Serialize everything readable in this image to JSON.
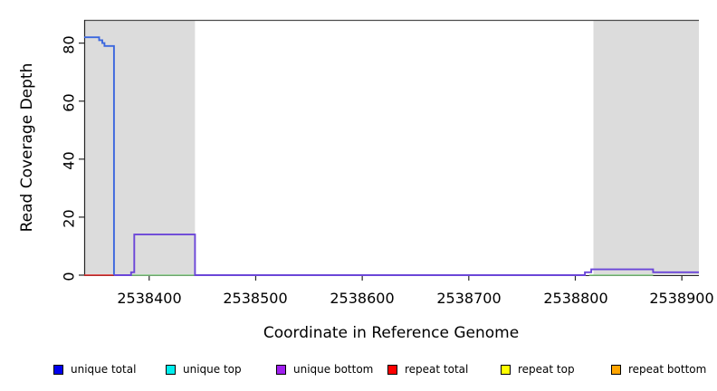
{
  "chart_data": {
    "type": "line",
    "subtype": "step-coverage",
    "xlabel": "Coordinate in Reference Genome",
    "ylabel": "Read Coverage Depth",
    "xlim": [
      2538339,
      2538916
    ],
    "ylim": [
      0,
      88
    ],
    "grid": false,
    "x_ticks": [
      2538400,
      2538500,
      2538600,
      2538700,
      2538800,
      2538900
    ],
    "x_tick_labels": [
      "2538400",
      "2538500",
      "2538600",
      "2538700",
      "2538800",
      "2538900"
    ],
    "y_ticks": [
      0,
      20,
      40,
      60,
      80
    ],
    "y_tick_labels": [
      "0",
      "20",
      "40",
      "60",
      "80"
    ],
    "shaded_regions": [
      {
        "x0": 2538339,
        "x1": 2538443,
        "color": "#DCDCDC"
      },
      {
        "x0": 2538817,
        "x1": 2538916,
        "color": "#DCDCDC"
      }
    ],
    "series": [
      {
        "name": "repeat total",
        "color": "#E02828",
        "segments": [
          [
            [
              2538339,
              0
            ],
            [
              2538367,
              0
            ]
          ]
        ]
      },
      {
        "name": "unique top",
        "color": "#85CE85",
        "segments": [
          [
            [
              2538367,
              0
            ],
            [
              2538443,
              0
            ]
          ],
          [
            [
              2538813,
              0
            ],
            [
              2538873,
              0
            ]
          ]
        ]
      },
      {
        "name": "unique total",
        "color": "#3B67DE",
        "segments": [
          [
            [
              2538339,
              82
            ],
            [
              2538353,
              82
            ],
            [
              2538353,
              81
            ],
            [
              2538356,
              81
            ],
            [
              2538356,
              80
            ],
            [
              2538358,
              80
            ],
            [
              2538358,
              79
            ],
            [
              2538367,
              79
            ],
            [
              2538367,
              0
            ]
          ]
        ]
      },
      {
        "name": "unique bottom",
        "color": "#6B46D8",
        "segments": [
          [
            [
              2538367,
              0
            ],
            [
              2538383,
              0
            ],
            [
              2538383,
              1
            ],
            [
              2538386,
              1
            ],
            [
              2538386,
              14
            ],
            [
              2538443,
              14
            ],
            [
              2538443,
              0
            ],
            [
              2538809,
              0
            ],
            [
              2538809,
              1
            ],
            [
              2538815,
              1
            ],
            [
              2538815,
              2
            ],
            [
              2538873,
              2
            ],
            [
              2538873,
              1
            ],
            [
              2538916,
              1
            ]
          ]
        ]
      }
    ],
    "axis_color": "#262626",
    "box_top_color": "#4D4D4D"
  },
  "legend": {
    "items": [
      {
        "label": "unique total",
        "color": "#0000EE"
      },
      {
        "label": "unique top",
        "color": "#00EEEE"
      },
      {
        "label": "unique bottom",
        "color": "#A020F0"
      },
      {
        "label": "repeat total",
        "color": "#FF0000"
      },
      {
        "label": "repeat top",
        "color": "#FFFF00"
      },
      {
        "label": "repeat bottom",
        "color": "#FFA500"
      }
    ]
  }
}
